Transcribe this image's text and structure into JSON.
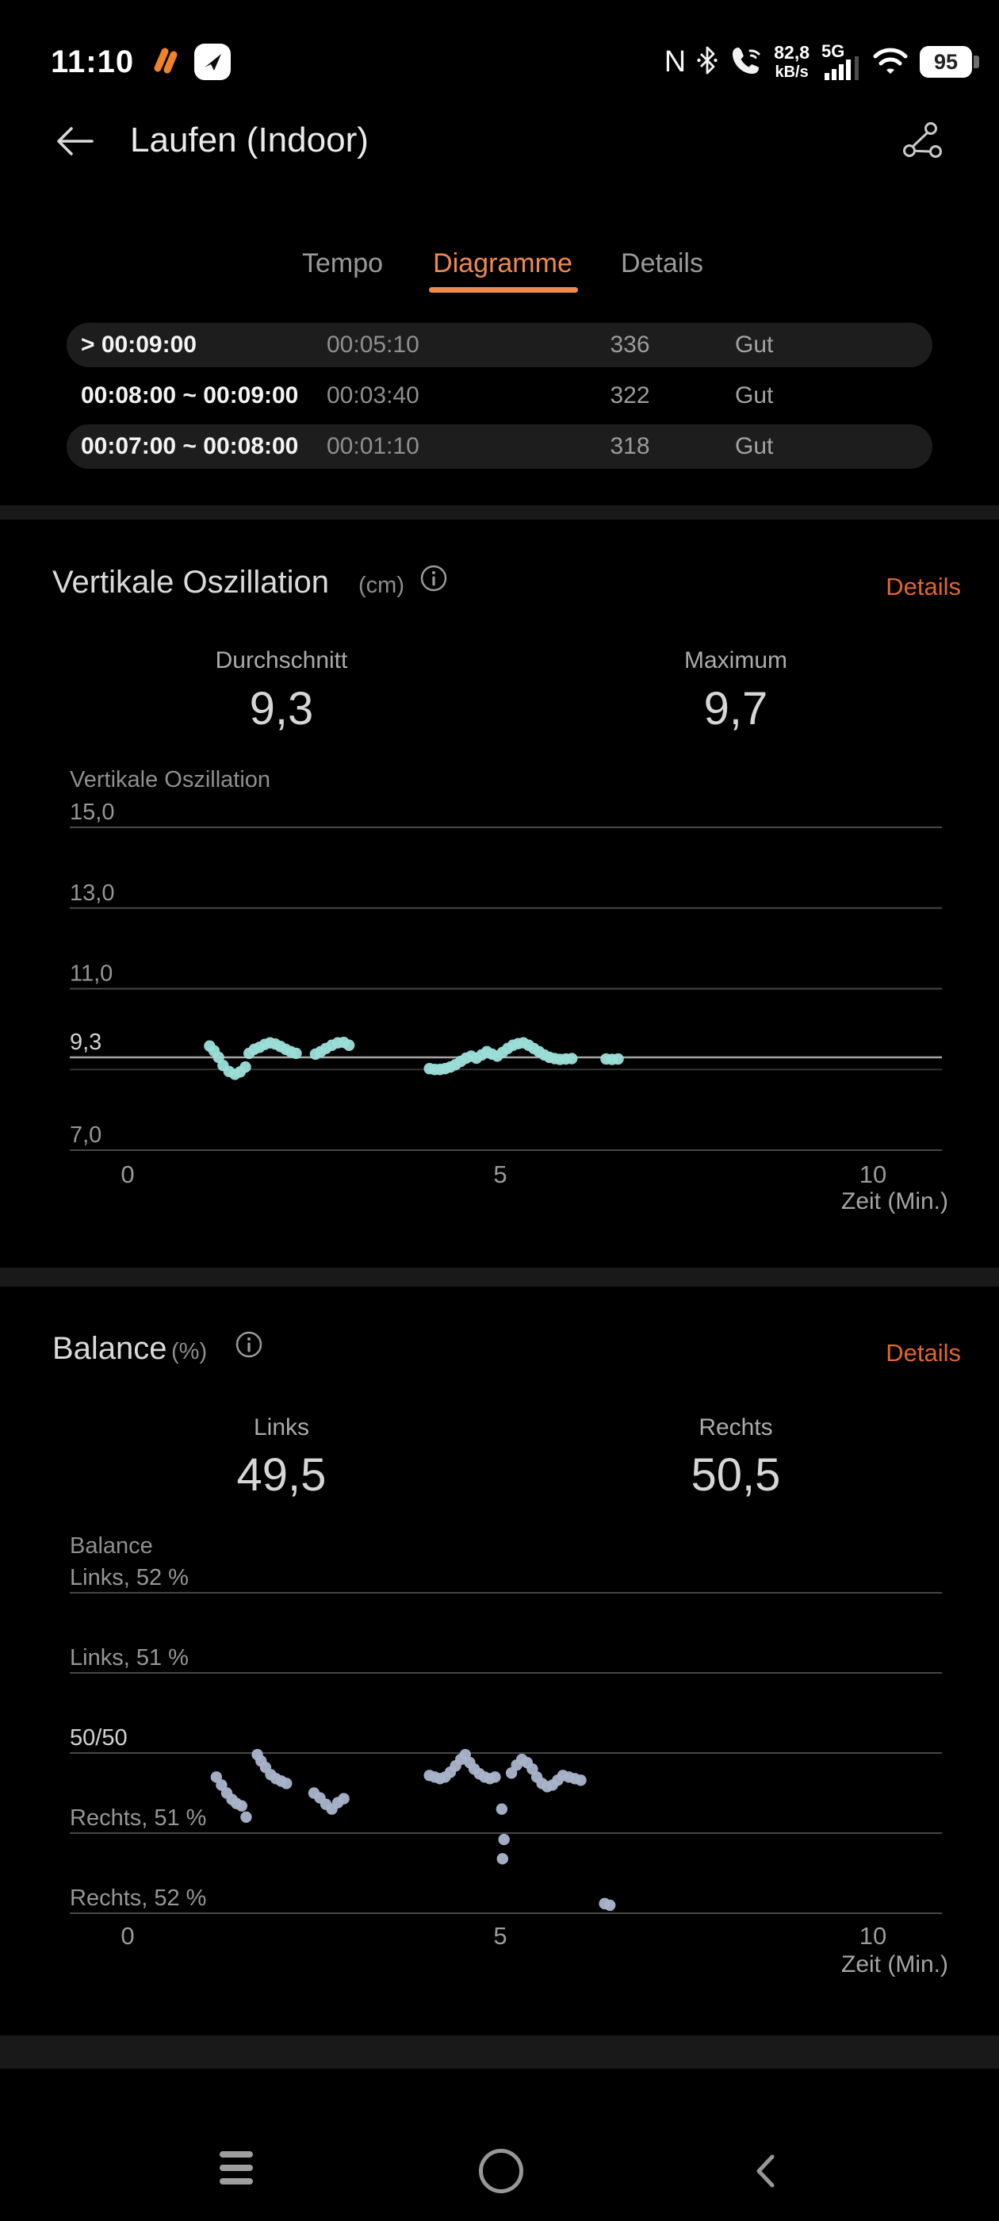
{
  "status_bar": {
    "time": "11:10",
    "nfc": "N",
    "net_speed_value": "82,8",
    "net_speed_unit": "kB/s",
    "net_type": "5G",
    "battery": "95",
    "icon_names": [
      "health-app-icon",
      "messages-app-icon",
      "nfc-icon",
      "bluetooth-icon",
      "wifi-calling-icon",
      "signal-bars-icon",
      "wifi-icon",
      "battery-icon"
    ]
  },
  "header": {
    "title": "Laufen (Indoor)"
  },
  "tabs": {
    "items": [
      {
        "label": "Tempo",
        "active": false
      },
      {
        "label": "Diagramme",
        "active": true
      },
      {
        "label": "Details",
        "active": false
      }
    ]
  },
  "pace_table": {
    "rows": [
      {
        "range": "> 00:09:00",
        "duration": "00:05:10",
        "value": "336",
        "rating": "Gut"
      },
      {
        "range": "00:08:00 ~ 00:09:00",
        "duration": "00:03:40",
        "value": "322",
        "rating": "Gut"
      },
      {
        "range": "00:07:00 ~ 00:08:00",
        "duration": "00:01:10",
        "value": "318",
        "rating": "Gut"
      }
    ]
  },
  "sections": {
    "vo": {
      "title": "Vertikale Oszillation",
      "unit": "(cm)",
      "details_label": "Details",
      "stats": [
        {
          "label": "Durchschnitt",
          "value": "9,3"
        },
        {
          "label": "Maximum",
          "value": "9,7"
        }
      ]
    },
    "balance": {
      "title": "Balance",
      "unit": "(%)",
      "details_label": "Details",
      "stats": [
        {
          "label": "Links",
          "value": "49,5"
        },
        {
          "label": "Rechts",
          "value": "50,5"
        }
      ]
    }
  },
  "chart_data": [
    {
      "type": "scatter",
      "axis_title": "Vertikale Oszillation",
      "xlabel": "Zeit (Min.)",
      "x_ticks": [
        {
          "value": 0,
          "label": "0"
        },
        {
          "value": 5,
          "label": "5"
        },
        {
          "value": 10,
          "label": "10"
        }
      ],
      "xlim": [
        -0.8,
        11.0
      ],
      "ylim": [
        6.5,
        15.5
      ],
      "y_lines": [
        {
          "value": 15.0,
          "label": "15,0",
          "label_emph": false,
          "line_emph": false,
          "faint": false
        },
        {
          "value": 13.0,
          "label": "13,0",
          "label_emph": false,
          "line_emph": false,
          "faint": false
        },
        {
          "value": 11.0,
          "label": "11,0",
          "label_emph": false,
          "line_emph": false,
          "faint": false
        },
        {
          "value": 9.3,
          "label": "9,3",
          "label_emph": true,
          "line_emph": true,
          "faint": false,
          "is_average": true
        },
        {
          "value": 9.0,
          "label": "",
          "label_emph": false,
          "line_emph": false,
          "faint": true
        },
        {
          "value": 7.0,
          "label": "7,0",
          "label_emph": false,
          "line_emph": false,
          "faint": false
        }
      ],
      "point_color": "#9bded9",
      "points": [
        [
          1.1,
          9.58
        ],
        [
          1.16,
          9.46
        ],
        [
          1.22,
          9.3
        ],
        [
          1.28,
          9.1
        ],
        [
          1.36,
          8.95
        ],
        [
          1.44,
          8.88
        ],
        [
          1.51,
          8.94
        ],
        [
          1.58,
          9.06
        ],
        [
          1.63,
          9.4
        ],
        [
          1.7,
          9.5
        ],
        [
          1.77,
          9.55
        ],
        [
          1.84,
          9.62
        ],
        [
          1.91,
          9.66
        ],
        [
          1.98,
          9.63
        ],
        [
          2.05,
          9.57
        ],
        [
          2.12,
          9.5
        ],
        [
          2.19,
          9.44
        ],
        [
          2.26,
          9.4
        ],
        [
          2.52,
          9.38
        ],
        [
          2.59,
          9.44
        ],
        [
          2.66,
          9.52
        ],
        [
          2.74,
          9.6
        ],
        [
          2.82,
          9.66
        ],
        [
          2.9,
          9.67
        ],
        [
          2.97,
          9.6
        ],
        [
          4.05,
          9.02
        ],
        [
          4.12,
          9.0
        ],
        [
          4.19,
          9.0
        ],
        [
          4.26,
          9.02
        ],
        [
          4.33,
          9.06
        ],
        [
          4.4,
          9.12
        ],
        [
          4.47,
          9.2
        ],
        [
          4.54,
          9.28
        ],
        [
          4.61,
          9.33
        ],
        [
          4.68,
          9.28
        ],
        [
          4.75,
          9.36
        ],
        [
          4.82,
          9.44
        ],
        [
          4.89,
          9.38
        ],
        [
          4.96,
          9.33
        ],
        [
          5.03,
          9.42
        ],
        [
          5.1,
          9.52
        ],
        [
          5.17,
          9.6
        ],
        [
          5.24,
          9.64
        ],
        [
          5.31,
          9.66
        ],
        [
          5.38,
          9.6
        ],
        [
          5.45,
          9.52
        ],
        [
          5.52,
          9.44
        ],
        [
          5.59,
          9.36
        ],
        [
          5.66,
          9.3
        ],
        [
          5.73,
          9.27
        ],
        [
          5.8,
          9.25
        ],
        [
          5.88,
          9.26
        ],
        [
          5.96,
          9.27
        ],
        [
          6.42,
          9.26
        ],
        [
          6.5,
          9.25
        ],
        [
          6.58,
          9.26
        ]
      ]
    },
    {
      "type": "scatter",
      "axis_title": "Balance",
      "xlabel": "Zeit (Min.)",
      "x_ticks": [
        {
          "value": 0,
          "label": "0"
        },
        {
          "value": 5,
          "label": "5"
        },
        {
          "value": 10,
          "label": "10"
        }
      ],
      "xlim": [
        -0.8,
        11.0
      ],
      "ylim": [
        48,
        52
      ],
      "y_lines": [
        {
          "value": 48,
          "label": "Links, 52 %",
          "label_emph": false,
          "line_emph": false,
          "faint": false
        },
        {
          "value": 49,
          "label": "Links, 51 %",
          "label_emph": false,
          "line_emph": false,
          "faint": false
        },
        {
          "value": 50,
          "label": "50/50",
          "label_emph": true,
          "line_emph": false,
          "faint": false
        },
        {
          "value": 51,
          "label": "Rechts, 51 %",
          "label_emph": false,
          "line_emph": false,
          "faint": false
        },
        {
          "value": 52,
          "label": "Rechts, 52 %",
          "label_emph": false,
          "line_emph": false,
          "faint": false
        }
      ],
      "point_color": "#a9b4cb",
      "points": [
        [
          1.19,
          50.3
        ],
        [
          1.26,
          50.4
        ],
        [
          1.33,
          50.5
        ],
        [
          1.4,
          50.58
        ],
        [
          1.46,
          50.63
        ],
        [
          1.53,
          50.66
        ],
        [
          1.59,
          50.8
        ],
        [
          1.74,
          50.02
        ],
        [
          1.79,
          50.1
        ],
        [
          1.85,
          50.18
        ],
        [
          1.92,
          50.27
        ],
        [
          1.99,
          50.32
        ],
        [
          2.06,
          50.35
        ],
        [
          2.13,
          50.38
        ],
        [
          2.5,
          50.5
        ],
        [
          2.58,
          50.56
        ],
        [
          2.66,
          50.64
        ],
        [
          2.74,
          50.7
        ],
        [
          2.82,
          50.62
        ],
        [
          2.9,
          50.57
        ],
        [
          4.05,
          50.28
        ],
        [
          4.12,
          50.3
        ],
        [
          4.19,
          50.32
        ],
        [
          4.26,
          50.3
        ],
        [
          4.33,
          50.24
        ],
        [
          4.4,
          50.16
        ],
        [
          4.47,
          50.08
        ],
        [
          4.53,
          50.02
        ],
        [
          4.59,
          50.12
        ],
        [
          4.65,
          50.2
        ],
        [
          4.72,
          50.26
        ],
        [
          4.79,
          50.3
        ],
        [
          4.86,
          50.32
        ],
        [
          4.93,
          50.3
        ],
        [
          5.02,
          50.7
        ],
        [
          5.05,
          51.08
        ],
        [
          5.03,
          51.32
        ],
        [
          5.15,
          50.25
        ],
        [
          5.22,
          50.15
        ],
        [
          5.29,
          50.08
        ],
        [
          5.36,
          50.12
        ],
        [
          5.43,
          50.2
        ],
        [
          5.49,
          50.3
        ],
        [
          5.56,
          50.38
        ],
        [
          5.63,
          50.42
        ],
        [
          5.7,
          50.4
        ],
        [
          5.77,
          50.34
        ],
        [
          5.84,
          50.28
        ],
        [
          5.92,
          50.3
        ],
        [
          6.0,
          50.32
        ],
        [
          6.08,
          50.34
        ],
        [
          6.4,
          51.88
        ],
        [
          6.47,
          51.9
        ]
      ]
    }
  ],
  "nav_bar": {
    "icon_names": [
      "menu-icon",
      "home-icon",
      "back-icon"
    ]
  }
}
